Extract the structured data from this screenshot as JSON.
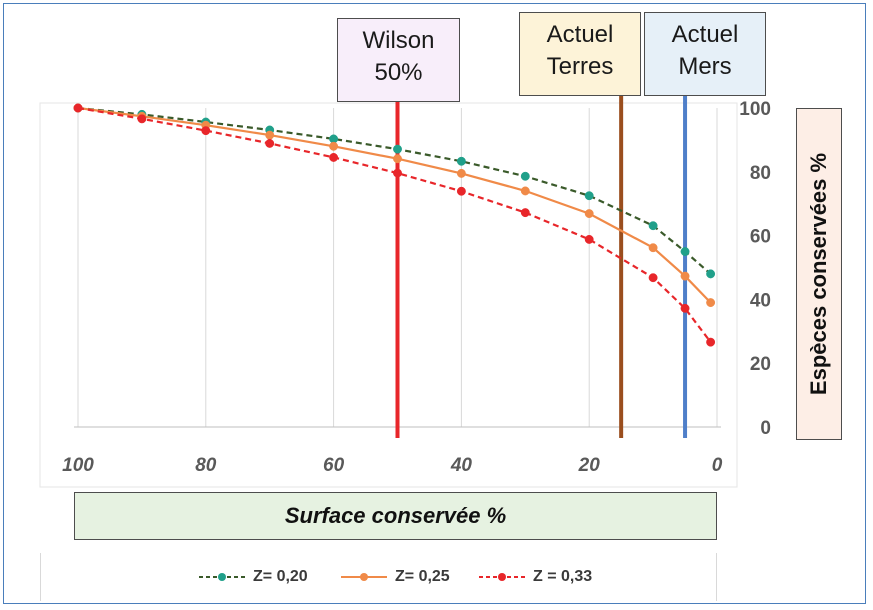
{
  "chart_data": {
    "type": "line",
    "xlabel": "Surface conservée %",
    "ylabel": "Espèces conservées %",
    "xlim": [
      100,
      0
    ],
    "ylim": [
      0,
      100
    ],
    "x_ticks": [
      "100",
      "80",
      "60",
      "40",
      "20",
      "0"
    ],
    "y_ticks": [
      "100",
      "80",
      "60",
      "40",
      "20",
      "0"
    ],
    "grid": "vertical",
    "x_reversed": true,
    "legend_position": "bottom",
    "series": [
      {
        "name": "Z= 0,20",
        "color": "#3a5a2a",
        "marker_color": "#20a08a",
        "line_style": "dashed",
        "x": [
          100,
          90,
          80,
          70,
          60,
          50,
          40,
          30,
          20,
          10,
          5,
          1
        ],
        "y": [
          100,
          98,
          95.6,
          93.1,
          90.3,
          87.1,
          83.3,
          78.6,
          72.5,
          63.1,
          55.0,
          48.0
        ]
      },
      {
        "name": "Z= 0,25",
        "color": "#f08a48",
        "marker_color": "#f08a48",
        "line_style": "solid",
        "x": [
          100,
          90,
          80,
          70,
          60,
          50,
          40,
          30,
          20,
          10,
          5,
          1
        ],
        "y": [
          100,
          97.4,
          94.6,
          91.5,
          88.0,
          84.1,
          79.5,
          74.0,
          66.9,
          56.2,
          47.3,
          39.0
        ]
      },
      {
        "name": "Z = 0,33",
        "color": "#e8262a",
        "marker_color": "#e8262a",
        "line_style": "dashed",
        "x": [
          100,
          90,
          80,
          70,
          60,
          50,
          40,
          30,
          20,
          10,
          5,
          1
        ],
        "y": [
          100,
          96.6,
          92.9,
          88.9,
          84.5,
          79.6,
          73.9,
          67.2,
          58.8,
          46.8,
          37.2,
          26.6
        ]
      }
    ],
    "reference_lines": [
      {
        "label": [
          "Wilson",
          "50%"
        ],
        "x": 50,
        "color": "#e8262a",
        "box_fill": "#f8eefa"
      },
      {
        "label": [
          "Actuel",
          "Terres"
        ],
        "x": 15,
        "color": "#9a4e1e",
        "box_fill": "#fdf3d8"
      },
      {
        "label": [
          "Actuel",
          "Mers"
        ],
        "x": 5,
        "color": "#4f7fc9",
        "box_fill": "#e6f0f8"
      }
    ]
  }
}
